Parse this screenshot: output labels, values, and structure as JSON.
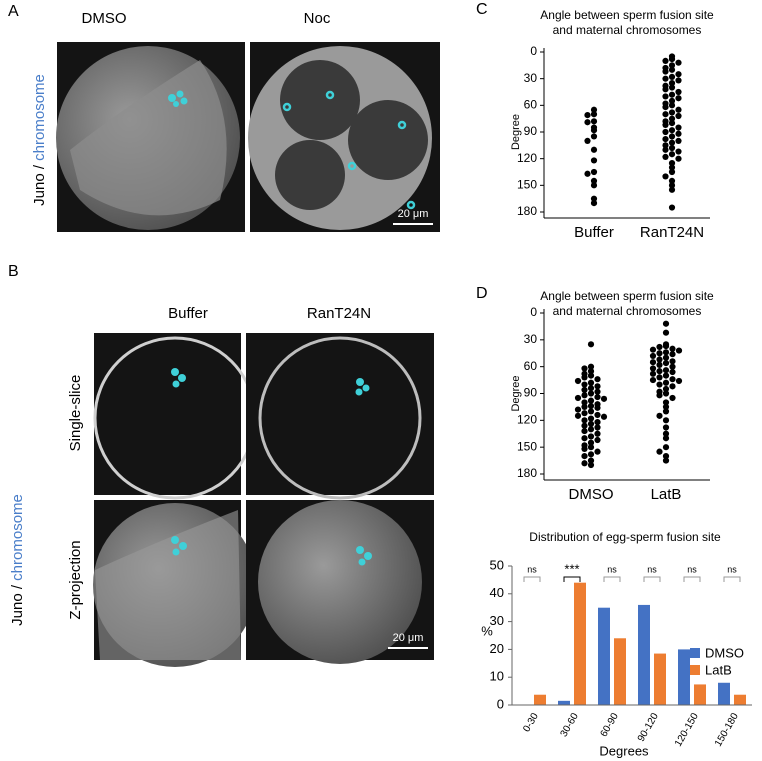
{
  "panels": {
    "A": {
      "label": "A",
      "columns": [
        "DMSO",
        "Noc"
      ],
      "side_label": [
        "Juno / ",
        "chromosome"
      ],
      "scale": "20 μm"
    },
    "B": {
      "label": "B",
      "columns": [
        "Buffer",
        "RanT24N"
      ],
      "rows": [
        "Single-slice",
        "Z-projection"
      ],
      "side_label": [
        "Juno / ",
        "chromosome"
      ],
      "scale": "20 μm"
    },
    "C": {
      "label": "C"
    },
    "D": {
      "label": "D"
    }
  },
  "chart_data": [
    {
      "type": "strip",
      "title": [
        "Angle between sperm fusion site",
        "and maternal chromosomes"
      ],
      "ylabel": "Degree",
      "ylim": [
        180,
        0
      ],
      "yticks": [
        0,
        30,
        60,
        90,
        120,
        150,
        180
      ],
      "color": "#000000",
      "groups": [
        {
          "name": "Buffer",
          "values": [
            65,
            70,
            71,
            78,
            79,
            85,
            88,
            95,
            100,
            110,
            122,
            135,
            137,
            145,
            150,
            165,
            170
          ]
        },
        {
          "name": "RanT24N",
          "values": [
            5,
            8,
            10,
            12,
            15,
            18,
            20,
            22,
            25,
            28,
            30,
            32,
            35,
            38,
            40,
            42,
            45,
            48,
            50,
            52,
            55,
            58,
            60,
            62,
            65,
            68,
            70,
            72,
            75,
            78,
            80,
            82,
            85,
            88,
            90,
            92,
            95,
            98,
            100,
            102,
            105,
            108,
            110,
            112,
            115,
            118,
            120,
            125,
            130,
            135,
            140,
            145,
            150,
            155,
            175
          ]
        }
      ]
    },
    {
      "type": "strip",
      "title": [
        "Angle between sperm fusion site",
        "and maternal chromosomes"
      ],
      "ylabel": "Degree",
      "ylim": [
        180,
        0
      ],
      "yticks": [
        0,
        30,
        60,
        90,
        120,
        150,
        180
      ],
      "color": "#000000",
      "groups": [
        {
          "name": "DMSO",
          "values": [
            35,
            60,
            62,
            65,
            68,
            70,
            72,
            74,
            76,
            78,
            80,
            82,
            84,
            86,
            88,
            90,
            92,
            94,
            95,
            96,
            98,
            100,
            102,
            104,
            105,
            106,
            108,
            110,
            112,
            114,
            115,
            116,
            118,
            120,
            122,
            124,
            126,
            128,
            130,
            132,
            135,
            138,
            140,
            142,
            145,
            148,
            150,
            152,
            155,
            158,
            160,
            165,
            168,
            170
          ]
        },
        {
          "name": "LatB",
          "values": [
            12,
            22,
            35,
            37,
            38,
            40,
            41,
            42,
            44,
            45,
            46,
            48,
            50,
            52,
            54,
            55,
            56,
            58,
            60,
            62,
            64,
            65,
            66,
            68,
            70,
            72,
            74,
            75,
            76,
            78,
            80,
            82,
            85,
            88,
            90,
            92,
            95,
            100,
            105,
            110,
            115,
            120,
            128,
            135,
            140,
            150,
            155,
            160,
            165
          ]
        }
      ]
    },
    {
      "type": "bar",
      "title": "Distribution of egg-sperm fusion site",
      "xlabel": "Degrees",
      "ylabel": "%",
      "categories": [
        "0-30",
        "30-60",
        "60-90",
        "90-120",
        "120-150",
        "150-180"
      ],
      "series": [
        {
          "name": "DMSO",
          "color": "#4472c4",
          "values": [
            0,
            1.5,
            35,
            36,
            20,
            8
          ]
        },
        {
          "name": "LatB",
          "color": "#ed7d31",
          "values": [
            3.7,
            44,
            24,
            18.5,
            7.4,
            3.7
          ]
        }
      ],
      "ylim": [
        0,
        50
      ],
      "yticks": [
        0,
        10,
        20,
        30,
        40,
        50
      ],
      "legend": "right",
      "annotations": [
        {
          "label": "ns",
          "color": "#999999"
        },
        {
          "label": "***",
          "color": "#000000"
        },
        {
          "label": "ns",
          "color": "#999999"
        },
        {
          "label": "ns",
          "color": "#999999"
        },
        {
          "label": "ns",
          "color": "#999999"
        },
        {
          "label": "ns",
          "color": "#999999"
        }
      ]
    }
  ]
}
